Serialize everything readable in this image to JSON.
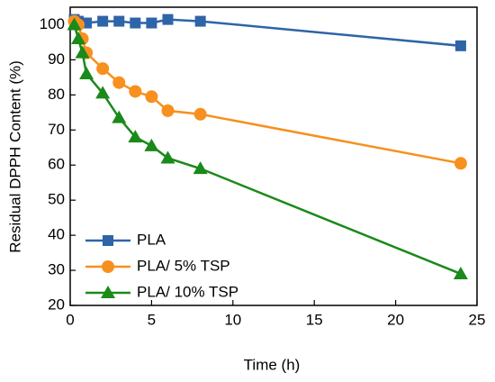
{
  "chart_data": {
    "type": "line",
    "x_label": "Time (h)",
    "y_label": "Residual DPPH Content (%)",
    "x": [
      0.25,
      0.5,
      0.75,
      1,
      2,
      3,
      4,
      5,
      6,
      8,
      24
    ],
    "series": [
      {
        "name": "PLA",
        "color": "#2e64a8",
        "marker": "square",
        "values": [
          101.5,
          101,
          100.5,
          100.5,
          101,
          101,
          100.5,
          100.5,
          101.5,
          101,
          94
        ]
      },
      {
        "name": "PLA/ 5% TSP",
        "color": "#f7901e",
        "marker": "circle",
        "values": [
          101,
          100,
          96,
          92,
          87.5,
          83.5,
          81,
          79.5,
          75.5,
          74.5,
          60.5
        ]
      },
      {
        "name": "PLA/ 10% TSP",
        "color": "#1a8a1a",
        "marker": "triangle",
        "values": [
          100,
          96,
          92,
          86,
          80.5,
          73.5,
          68,
          65.5,
          62,
          59,
          29
        ]
      }
    ],
    "xlim": [
      0,
      25
    ],
    "xticks": [
      0,
      5,
      10,
      15,
      20,
      25
    ],
    "ylim": [
      20,
      105
    ],
    "yticks": [
      20,
      30,
      40,
      50,
      60,
      70,
      80,
      90,
      100
    ],
    "legend": "lower left"
  }
}
